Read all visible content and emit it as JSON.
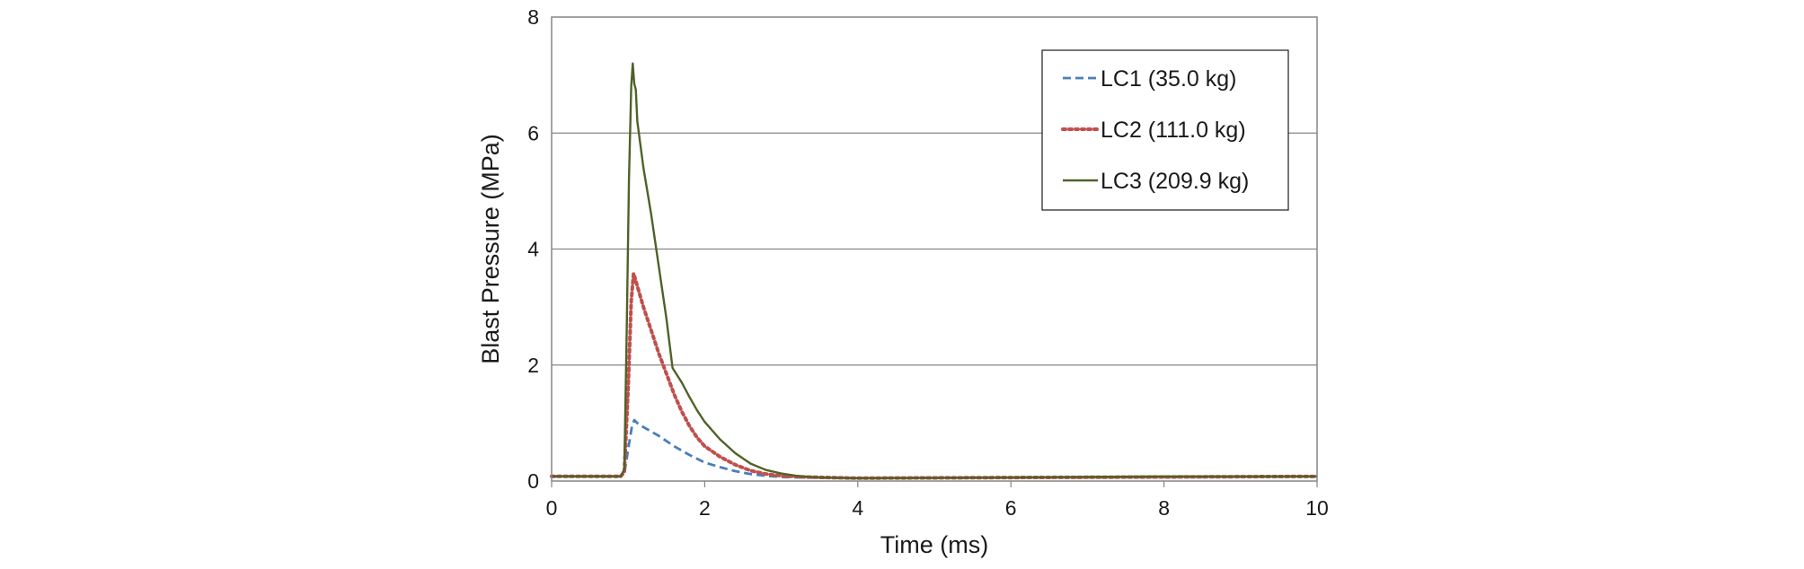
{
  "chart_data": {
    "type": "line",
    "title": "",
    "xlabel": "Time (ms)",
    "ylabel": "Blast Pressure (MPa)",
    "xlim": [
      0,
      10
    ],
    "ylim": [
      0,
      8
    ],
    "xticks": [
      0,
      2,
      4,
      6,
      8,
      10
    ],
    "yticks": [
      0,
      2,
      4,
      6,
      8
    ],
    "xtick_labels": [
      "0",
      "2",
      "4",
      "6",
      "8",
      "10"
    ],
    "ytick_labels": [
      "0",
      "2",
      "4",
      "6",
      "8"
    ],
    "grid": "horizontal major",
    "legend_position": "top-right",
    "series": [
      {
        "name": "LC1 (35.0 kg)",
        "color": "#4a7ebb",
        "style": "dashed",
        "points": [
          [
            0,
            0.08
          ],
          [
            0.9,
            0.08
          ],
          [
            0.95,
            0.12
          ],
          [
            1.0,
            0.55
          ],
          [
            1.05,
            0.95
          ],
          [
            1.08,
            1.05
          ],
          [
            1.12,
            1.0
          ],
          [
            1.2,
            0.93
          ],
          [
            1.4,
            0.78
          ],
          [
            1.6,
            0.6
          ],
          [
            1.8,
            0.45
          ],
          [
            2.0,
            0.32
          ],
          [
            2.2,
            0.24
          ],
          [
            2.4,
            0.17
          ],
          [
            2.6,
            0.12
          ],
          [
            2.8,
            0.09
          ],
          [
            3.0,
            0.07
          ],
          [
            3.3,
            0.06
          ],
          [
            4.0,
            0.05
          ],
          [
            6.0,
            0.06
          ],
          [
            8.0,
            0.07
          ],
          [
            10.0,
            0.08
          ]
        ]
      },
      {
        "name": "LC2 (111.0 kg)",
        "color": "#c0504d",
        "style": "dotted",
        "points": [
          [
            0,
            0.08
          ],
          [
            0.9,
            0.08
          ],
          [
            0.95,
            0.15
          ],
          [
            1.0,
            1.6
          ],
          [
            1.04,
            3.1
          ],
          [
            1.07,
            3.58
          ],
          [
            1.1,
            3.45
          ],
          [
            1.2,
            3.0
          ],
          [
            1.3,
            2.6
          ],
          [
            1.4,
            2.2
          ],
          [
            1.5,
            1.85
          ],
          [
            1.6,
            1.5
          ],
          [
            1.7,
            1.2
          ],
          [
            1.8,
            0.95
          ],
          [
            1.9,
            0.75
          ],
          [
            2.0,
            0.6
          ],
          [
            2.2,
            0.42
          ],
          [
            2.4,
            0.28
          ],
          [
            2.6,
            0.18
          ],
          [
            2.8,
            0.12
          ],
          [
            3.0,
            0.09
          ],
          [
            3.3,
            0.07
          ],
          [
            4.0,
            0.05
          ],
          [
            6.0,
            0.06
          ],
          [
            8.0,
            0.07
          ],
          [
            10.0,
            0.08
          ]
        ]
      },
      {
        "name": "LC3 (209.9 kg)",
        "color": "#4f6228",
        "style": "solid",
        "points": [
          [
            0,
            0.08
          ],
          [
            0.9,
            0.08
          ],
          [
            0.95,
            0.2
          ],
          [
            0.98,
            2.5
          ],
          [
            1.01,
            5.2
          ],
          [
            1.04,
            6.8
          ],
          [
            1.06,
            7.2
          ],
          [
            1.08,
            6.85
          ],
          [
            1.1,
            6.75
          ],
          [
            1.12,
            6.2
          ],
          [
            1.2,
            5.4
          ],
          [
            1.3,
            4.6
          ],
          [
            1.4,
            3.7
          ],
          [
            1.5,
            2.8
          ],
          [
            1.58,
            1.95
          ],
          [
            1.7,
            1.7
          ],
          [
            1.8,
            1.45
          ],
          [
            1.9,
            1.22
          ],
          [
            2.0,
            1.02
          ],
          [
            2.2,
            0.72
          ],
          [
            2.4,
            0.48
          ],
          [
            2.6,
            0.3
          ],
          [
            2.8,
            0.19
          ],
          [
            3.0,
            0.13
          ],
          [
            3.2,
            0.09
          ],
          [
            3.5,
            0.06
          ],
          [
            4.0,
            0.05
          ],
          [
            6.0,
            0.06
          ],
          [
            8.0,
            0.08
          ],
          [
            10.0,
            0.08
          ]
        ]
      }
    ]
  }
}
